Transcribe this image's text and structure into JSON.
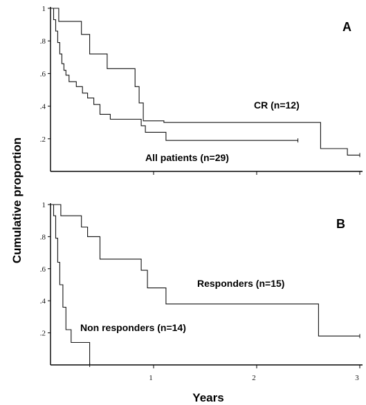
{
  "ylabel": "Cumulative proportion",
  "xlabel": "Years",
  "chart_data": [
    {
      "type": "line",
      "panel_label": "A",
      "xlim": [
        0,
        3
      ],
      "ylim": [
        0,
        1
      ],
      "x_ticks": [],
      "y_ticks": [
        "1",
        ".8",
        ".6",
        ".4",
        ".2"
      ],
      "series": [
        {
          "name": "CR (n=12)",
          "x": [
            0,
            0.08,
            0.3,
            0.38,
            0.55,
            0.82,
            0.86,
            0.9,
            1.1,
            2.6,
            2.62,
            2.88,
            3.0
          ],
          "y": [
            1.0,
            0.92,
            0.84,
            0.72,
            0.63,
            0.52,
            0.42,
            0.31,
            0.3,
            0.3,
            0.14,
            0.1,
            0.1
          ]
        },
        {
          "name": "All patients (n=29)",
          "x": [
            0,
            0.03,
            0.05,
            0.07,
            0.09,
            0.11,
            0.13,
            0.15,
            0.18,
            0.25,
            0.31,
            0.36,
            0.42,
            0.48,
            0.58,
            0.88,
            0.92,
            1.12,
            2.4
          ],
          "y": [
            1.0,
            0.93,
            0.86,
            0.79,
            0.72,
            0.66,
            0.62,
            0.59,
            0.55,
            0.52,
            0.48,
            0.45,
            0.41,
            0.35,
            0.32,
            0.28,
            0.24,
            0.19,
            0.19
          ]
        }
      ]
    },
    {
      "type": "line",
      "panel_label": "B",
      "xlim": [
        0,
        3
      ],
      "ylim": [
        0,
        1
      ],
      "x_ticks": [
        "1",
        "2",
        "3"
      ],
      "y_ticks": [
        "1",
        ".8",
        ".6",
        ".4",
        ".2"
      ],
      "series": [
        {
          "name": "Responders (n=15)",
          "x": [
            0,
            0.1,
            0.3,
            0.36,
            0.48,
            0.88,
            0.94,
            1.12,
            1.25,
            2.6,
            3.0
          ],
          "y": [
            1.0,
            0.93,
            0.86,
            0.8,
            0.66,
            0.59,
            0.48,
            0.38,
            0.38,
            0.18,
            0.18
          ],
          "end": 3.0
        },
        {
          "name": "Non responders (n=14)",
          "x": [
            0,
            0.03,
            0.05,
            0.07,
            0.09,
            0.12,
            0.15,
            0.2,
            0.38
          ],
          "y": [
            1.0,
            0.93,
            0.79,
            0.64,
            0.5,
            0.36,
            0.22,
            0.14,
            0.0
          ],
          "end": 0.4
        }
      ]
    }
  ]
}
